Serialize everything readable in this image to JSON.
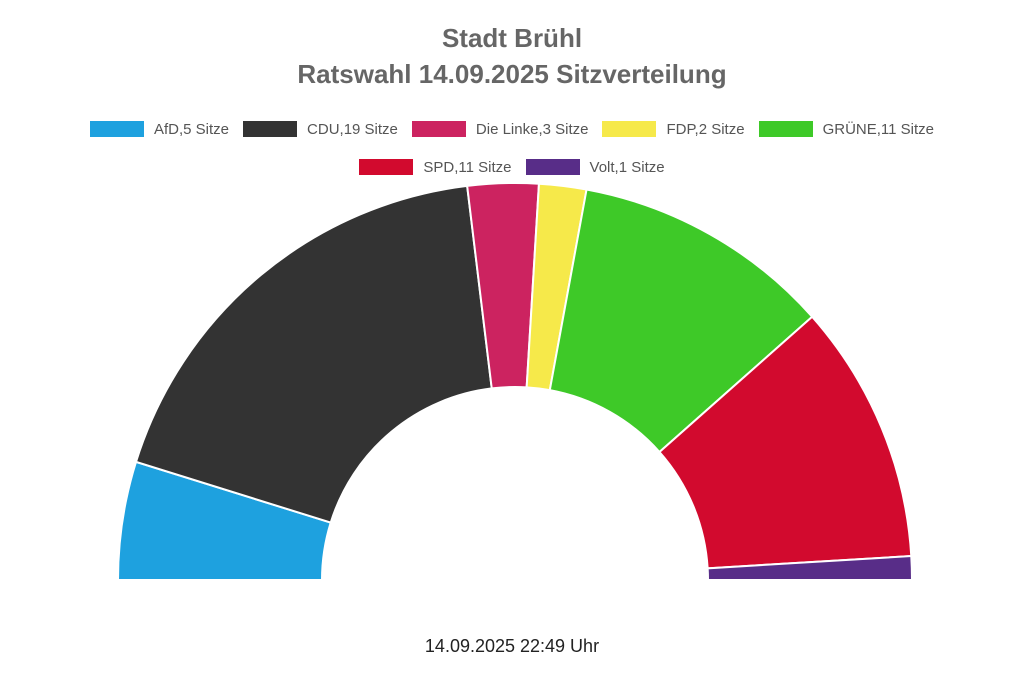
{
  "chart_data": {
    "type": "pie",
    "subtype": "semicircle-parliament",
    "title": "Stadt Brühl",
    "subtitle": "Ratswahl 14.09.2025 Sitzverteilung",
    "series": [
      {
        "name": "AfD",
        "label": "AfD,5 Sitze",
        "value": 5,
        "color": "#1ea1df"
      },
      {
        "name": "CDU",
        "label": "CDU,19 Sitze",
        "value": 19,
        "color": "#333333"
      },
      {
        "name": "Die Linke",
        "label": "Die Linke,3 Sitze",
        "value": 3,
        "color": "#cc2360"
      },
      {
        "name": "FDP",
        "label": "FDP,2 Sitze",
        "value": 2,
        "color": "#f6e94a"
      },
      {
        "name": "GRÜNE",
        "label": "GRÜNE,11 Sitze",
        "value": 11,
        "color": "#3ec928"
      },
      {
        "name": "SPD",
        "label": "SPD,11 Sitze",
        "value": 11,
        "color": "#d20a2e"
      },
      {
        "name": "Volt",
        "label": "Volt,1 Sitze",
        "value": 1,
        "color": "#582d88"
      }
    ],
    "legend_position": "top",
    "footer": "14.09.2025 22:49 Uhr"
  }
}
